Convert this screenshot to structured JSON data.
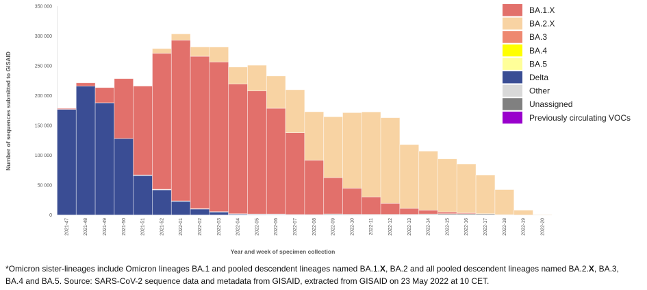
{
  "footnote": {
    "line1_a": "*Omicron sister-lineages include Omicron lineages BA.1 and pooled descendent lineages named BA.1.",
    "line1_b": "X",
    "line1_c": ", BA.2 and all pooled descendent lineages named BA.2.",
    "line1_d": "X",
    "line1_e": ", BA.3,",
    "line2": "BA.4 and BA.5. Source: SARS-CoV-2 sequence data and metadata from GISAID, extracted from GISAID on 23 May 2022 at 10 CET."
  },
  "chart_data": {
    "type": "bar",
    "stacked": true,
    "title": "",
    "xlabel": "Year and week of specimen collection",
    "ylabel": "Number of sequences submitted to GISAID",
    "ylim": [
      0,
      350000
    ],
    "yticks": [
      0,
      50000,
      100000,
      150000,
      200000,
      250000,
      300000,
      350000
    ],
    "ytick_labels": [
      "0",
      "50 000",
      "100 000",
      "150 000",
      "200 000",
      "250 000",
      "300 000",
      "350 000"
    ],
    "legend_position": "top-right",
    "grid": false,
    "categories": [
      "2021-47",
      "2021-48",
      "2021-49",
      "2021-50",
      "2021-51",
      "2021-52",
      "2022-01",
      "2022-02",
      "2022-03",
      "2022-04",
      "2022-05",
      "2022-06",
      "2022-07",
      "2022-08",
      "2022-09",
      "2022-10",
      "2022-11",
      "2022-12",
      "2022-13",
      "2022-14",
      "2022-15",
      "2022-16",
      "2022-17",
      "2022-18",
      "2022-19",
      "2022-20"
    ],
    "series": [
      {
        "name": "Delta",
        "color": "#3A4D94",
        "values": [
          177000,
          216000,
          188000,
          128000,
          66000,
          42000,
          23000,
          10000,
          5000,
          1500,
          1000,
          500,
          300,
          200,
          100,
          100,
          0,
          0,
          0,
          0,
          0,
          0,
          0,
          0,
          0,
          0
        ]
      },
      {
        "name": "Other",
        "color": "#D9D9D9",
        "values": [
          0,
          0,
          0,
          0,
          1000,
          1000,
          500,
          500,
          500,
          500,
          500,
          1000,
          500,
          500,
          500,
          500,
          500,
          500,
          500,
          500,
          500,
          500,
          500,
          500,
          0,
          0
        ]
      },
      {
        "name": "Unassigned",
        "color": "#808080",
        "values": [
          0,
          0,
          0,
          0,
          0,
          0,
          0,
          0,
          0,
          0,
          0,
          0,
          0,
          0,
          1000,
          500,
          500,
          500,
          500,
          1000,
          1500,
          1500,
          1500,
          0,
          0,
          0
        ]
      },
      {
        "name": "BA.1.X",
        "color": "#E2706B",
        "values": [
          1500,
          5500,
          25500,
          100500,
          149000,
          228000,
          269500,
          255500,
          251000,
          217500,
          206500,
          177300,
          137000,
          91000,
          61000,
          43800,
          29300,
          18600,
          10000,
          6500,
          3000,
          1500,
          0,
          0,
          0,
          0
        ]
      },
      {
        "name": "BA.2.X",
        "color": "#F8D3A3",
        "values": [
          0,
          0,
          0,
          0,
          0,
          8000,
          10500,
          15600,
          25000,
          28500,
          43000,
          54200,
          72100,
          81300,
          102000,
          126600,
          142400,
          143400,
          107000,
          99000,
          89000,
          82000,
          65000,
          42000,
          8000,
          300
        ]
      },
      {
        "name": "BA.3",
        "color": "#EE8870",
        "values": [
          0,
          0,
          0,
          0,
          0,
          0,
          0,
          0,
          0,
          0,
          0,
          0,
          0,
          0,
          0,
          0,
          0,
          0,
          0,
          0,
          0,
          0,
          0,
          0,
          0,
          0
        ]
      },
      {
        "name": "BA.4",
        "color": "#FFFF00",
        "values": [
          0,
          0,
          0,
          0,
          0,
          0,
          0,
          0,
          0,
          0,
          0,
          0,
          0,
          0,
          0,
          0,
          0,
          0,
          0,
          0,
          0,
          0,
          0,
          0,
          0,
          0
        ]
      },
      {
        "name": "BA.5",
        "color": "#FFFF99",
        "values": [
          0,
          0,
          0,
          0,
          0,
          0,
          0,
          0,
          0,
          0,
          0,
          0,
          0,
          0,
          0,
          0,
          0,
          0,
          0,
          0,
          0,
          0,
          0,
          0,
          0,
          0
        ]
      },
      {
        "name": "Previously circulating VOCs",
        "color": "#9900CC",
        "values": [
          0,
          0,
          0,
          0,
          0,
          0,
          0,
          0,
          0,
          0,
          0,
          0,
          0,
          0,
          0,
          0,
          0,
          0,
          0,
          0,
          0,
          0,
          0,
          0,
          0,
          0
        ]
      }
    ],
    "legend": [
      {
        "label": "BA.1.X",
        "color": "#E2706B"
      },
      {
        "label": "BA.2.X",
        "color": "#F8D3A3"
      },
      {
        "label": "BA.3",
        "color": "#EE8870"
      },
      {
        "label": "BA.4",
        "color": "#FFFF00"
      },
      {
        "label": "BA.5",
        "color": "#FFFF99"
      },
      {
        "label": "Delta",
        "color": "#3A4D94"
      },
      {
        "label": "Other",
        "color": "#D9D9D9"
      },
      {
        "label": "Unassigned",
        "color": "#808080"
      },
      {
        "label": "Previously circulating VOCs",
        "color": "#9900CC"
      }
    ]
  }
}
